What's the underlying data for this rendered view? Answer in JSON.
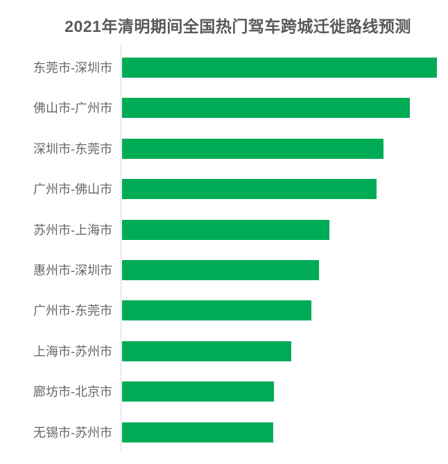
{
  "page": {
    "background_color": "#ffffff"
  },
  "chart_data": {
    "type": "bar",
    "orientation": "horizontal",
    "title": "2021年清明期间全国热门驾车跨城迁徙路线预测",
    "categories": [
      "东莞市-深圳市",
      "佛山市-广州市",
      "深圳市-东莞市",
      "广州市-佛山市",
      "苏州市-上海市",
      "惠州市-深圳市",
      "广州市-东莞市",
      "上海市-苏州市",
      "廊坊市-北京市",
      "无锡市-苏州市"
    ],
    "values": [
      100,
      91.4,
      83.0,
      80.8,
      65.9,
      62.6,
      60.1,
      53.7,
      48.2,
      48.0
    ],
    "values_note": "relative bar length, percent of longest bar (no numeric axis or data labels are shown in the chart)",
    "xlabel": "",
    "ylabel": "",
    "xlim": [
      0,
      100
    ],
    "legend": "none",
    "grid": "off",
    "value_labels_shown": false,
    "bar_color": "#00ab56",
    "axis_line_color": "#d9d9d9",
    "label_color": "#666666",
    "title_color": "#595959"
  }
}
